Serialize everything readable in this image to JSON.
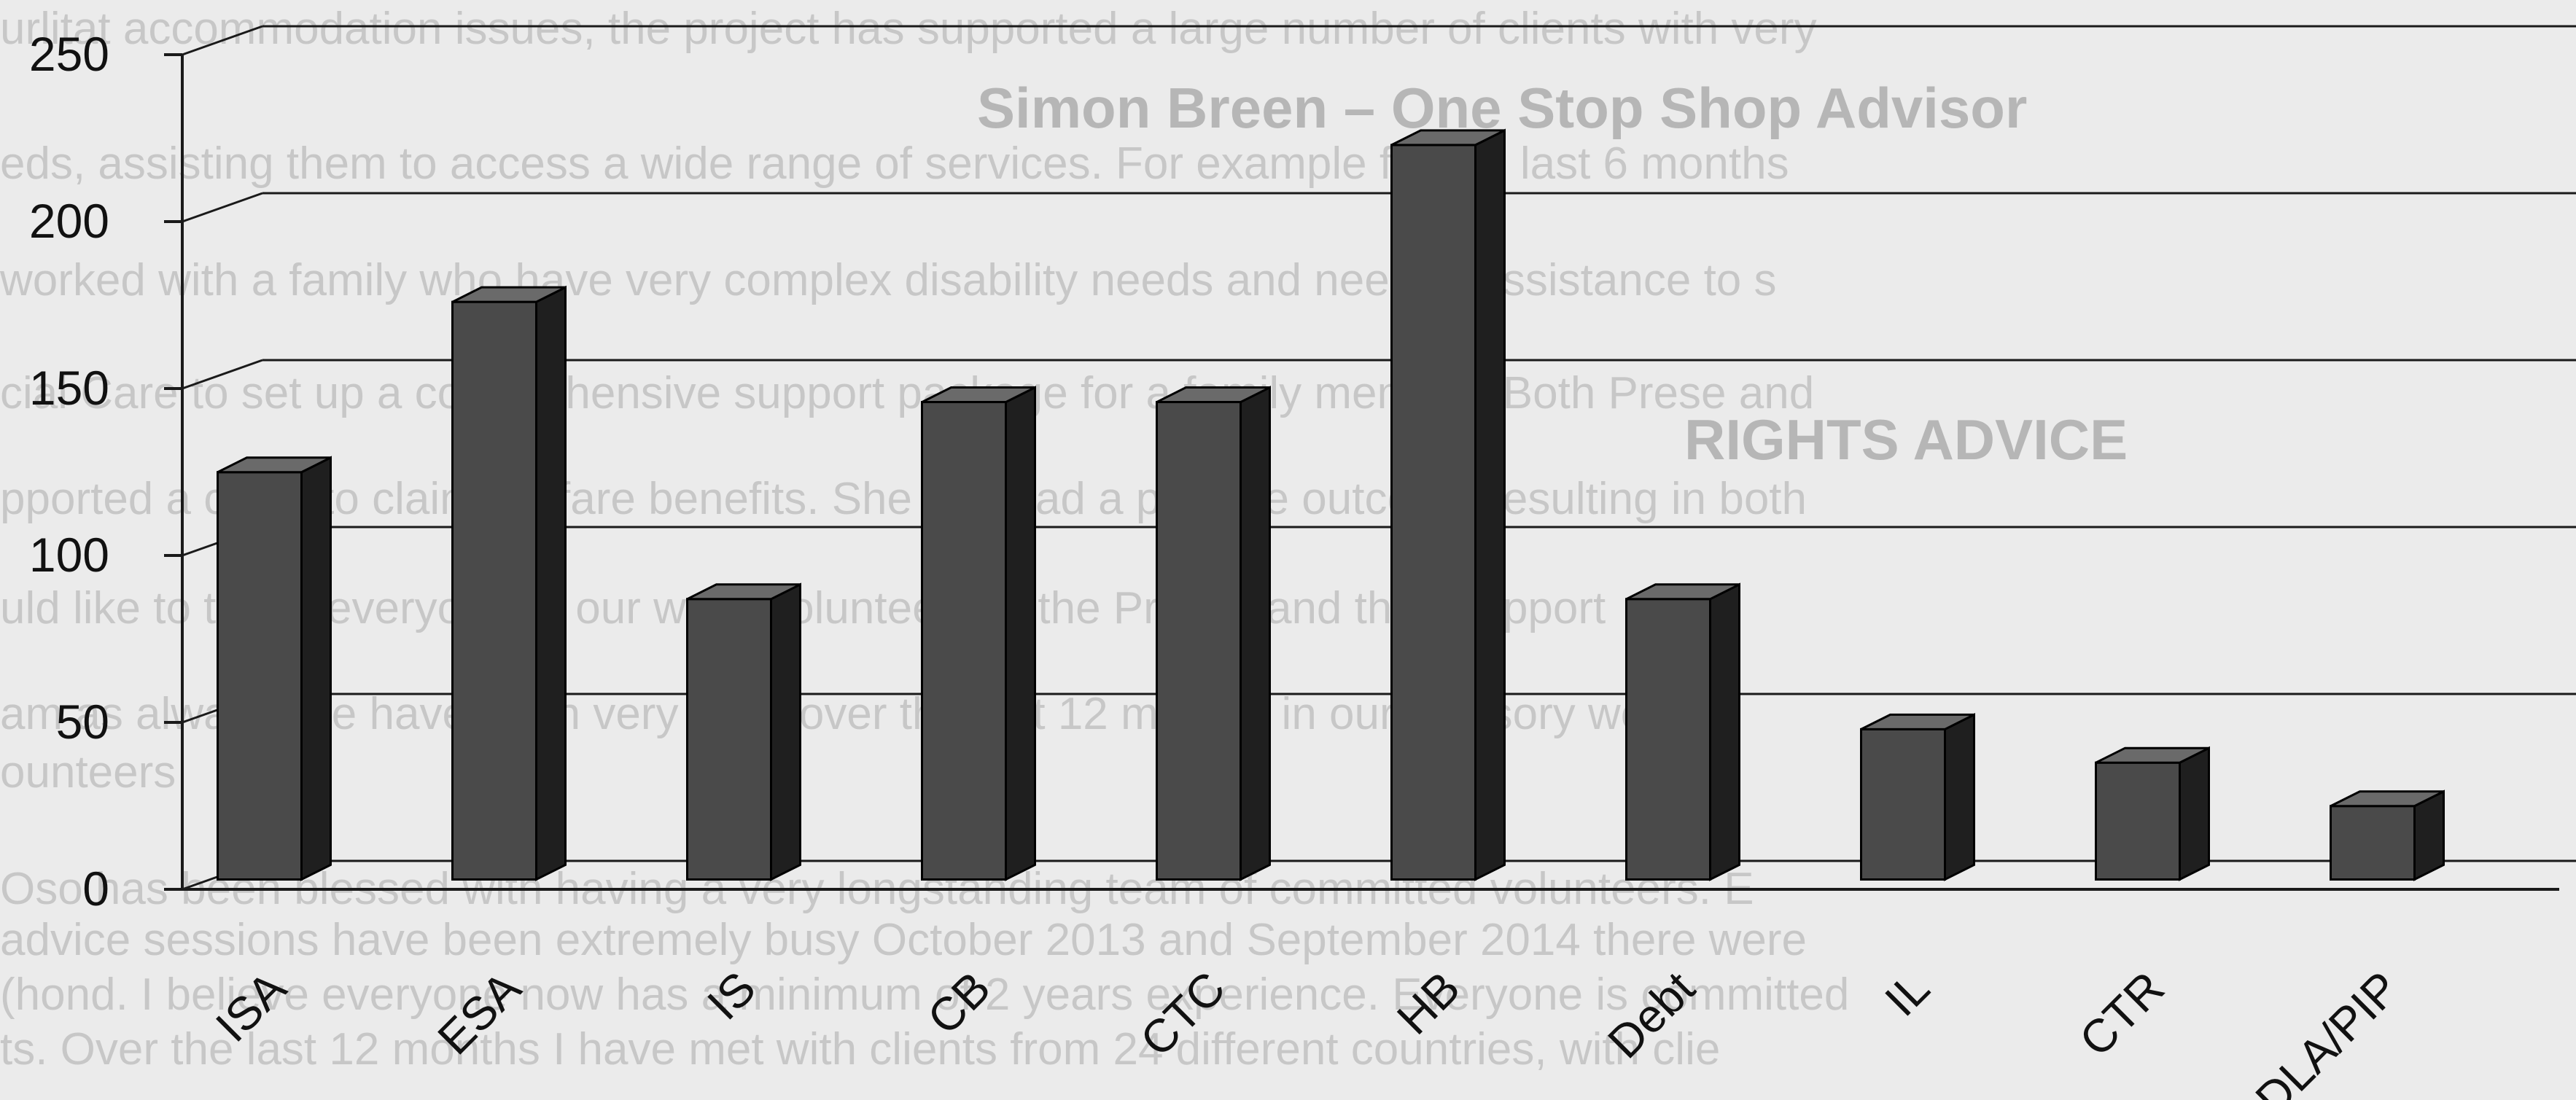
{
  "chart_data": {
    "type": "bar",
    "categories": [
      "ISA",
      "ESA",
      "IS",
      "CB",
      "CTC",
      "HB",
      "Debt",
      "IL",
      "CTR",
      "DLA/PIP"
    ],
    "values": [
      122,
      173,
      84,
      143,
      143,
      220,
      84,
      45,
      35,
      22
    ],
    "yticks": [
      0,
      50,
      100,
      150,
      200,
      250
    ],
    "ylim": [
      0,
      250
    ],
    "grid": true,
    "legend": "none",
    "bar_color": "#4a4a4a",
    "title": "",
    "xlabel": "",
    "ylabel": ""
  },
  "colors": {
    "background": "#ebebeb",
    "bar_front": "#4a4a4a",
    "bar_side": "#1f1f1f",
    "bar_top": "#6a6a6a",
    "grid": "#1a1a1a"
  }
}
